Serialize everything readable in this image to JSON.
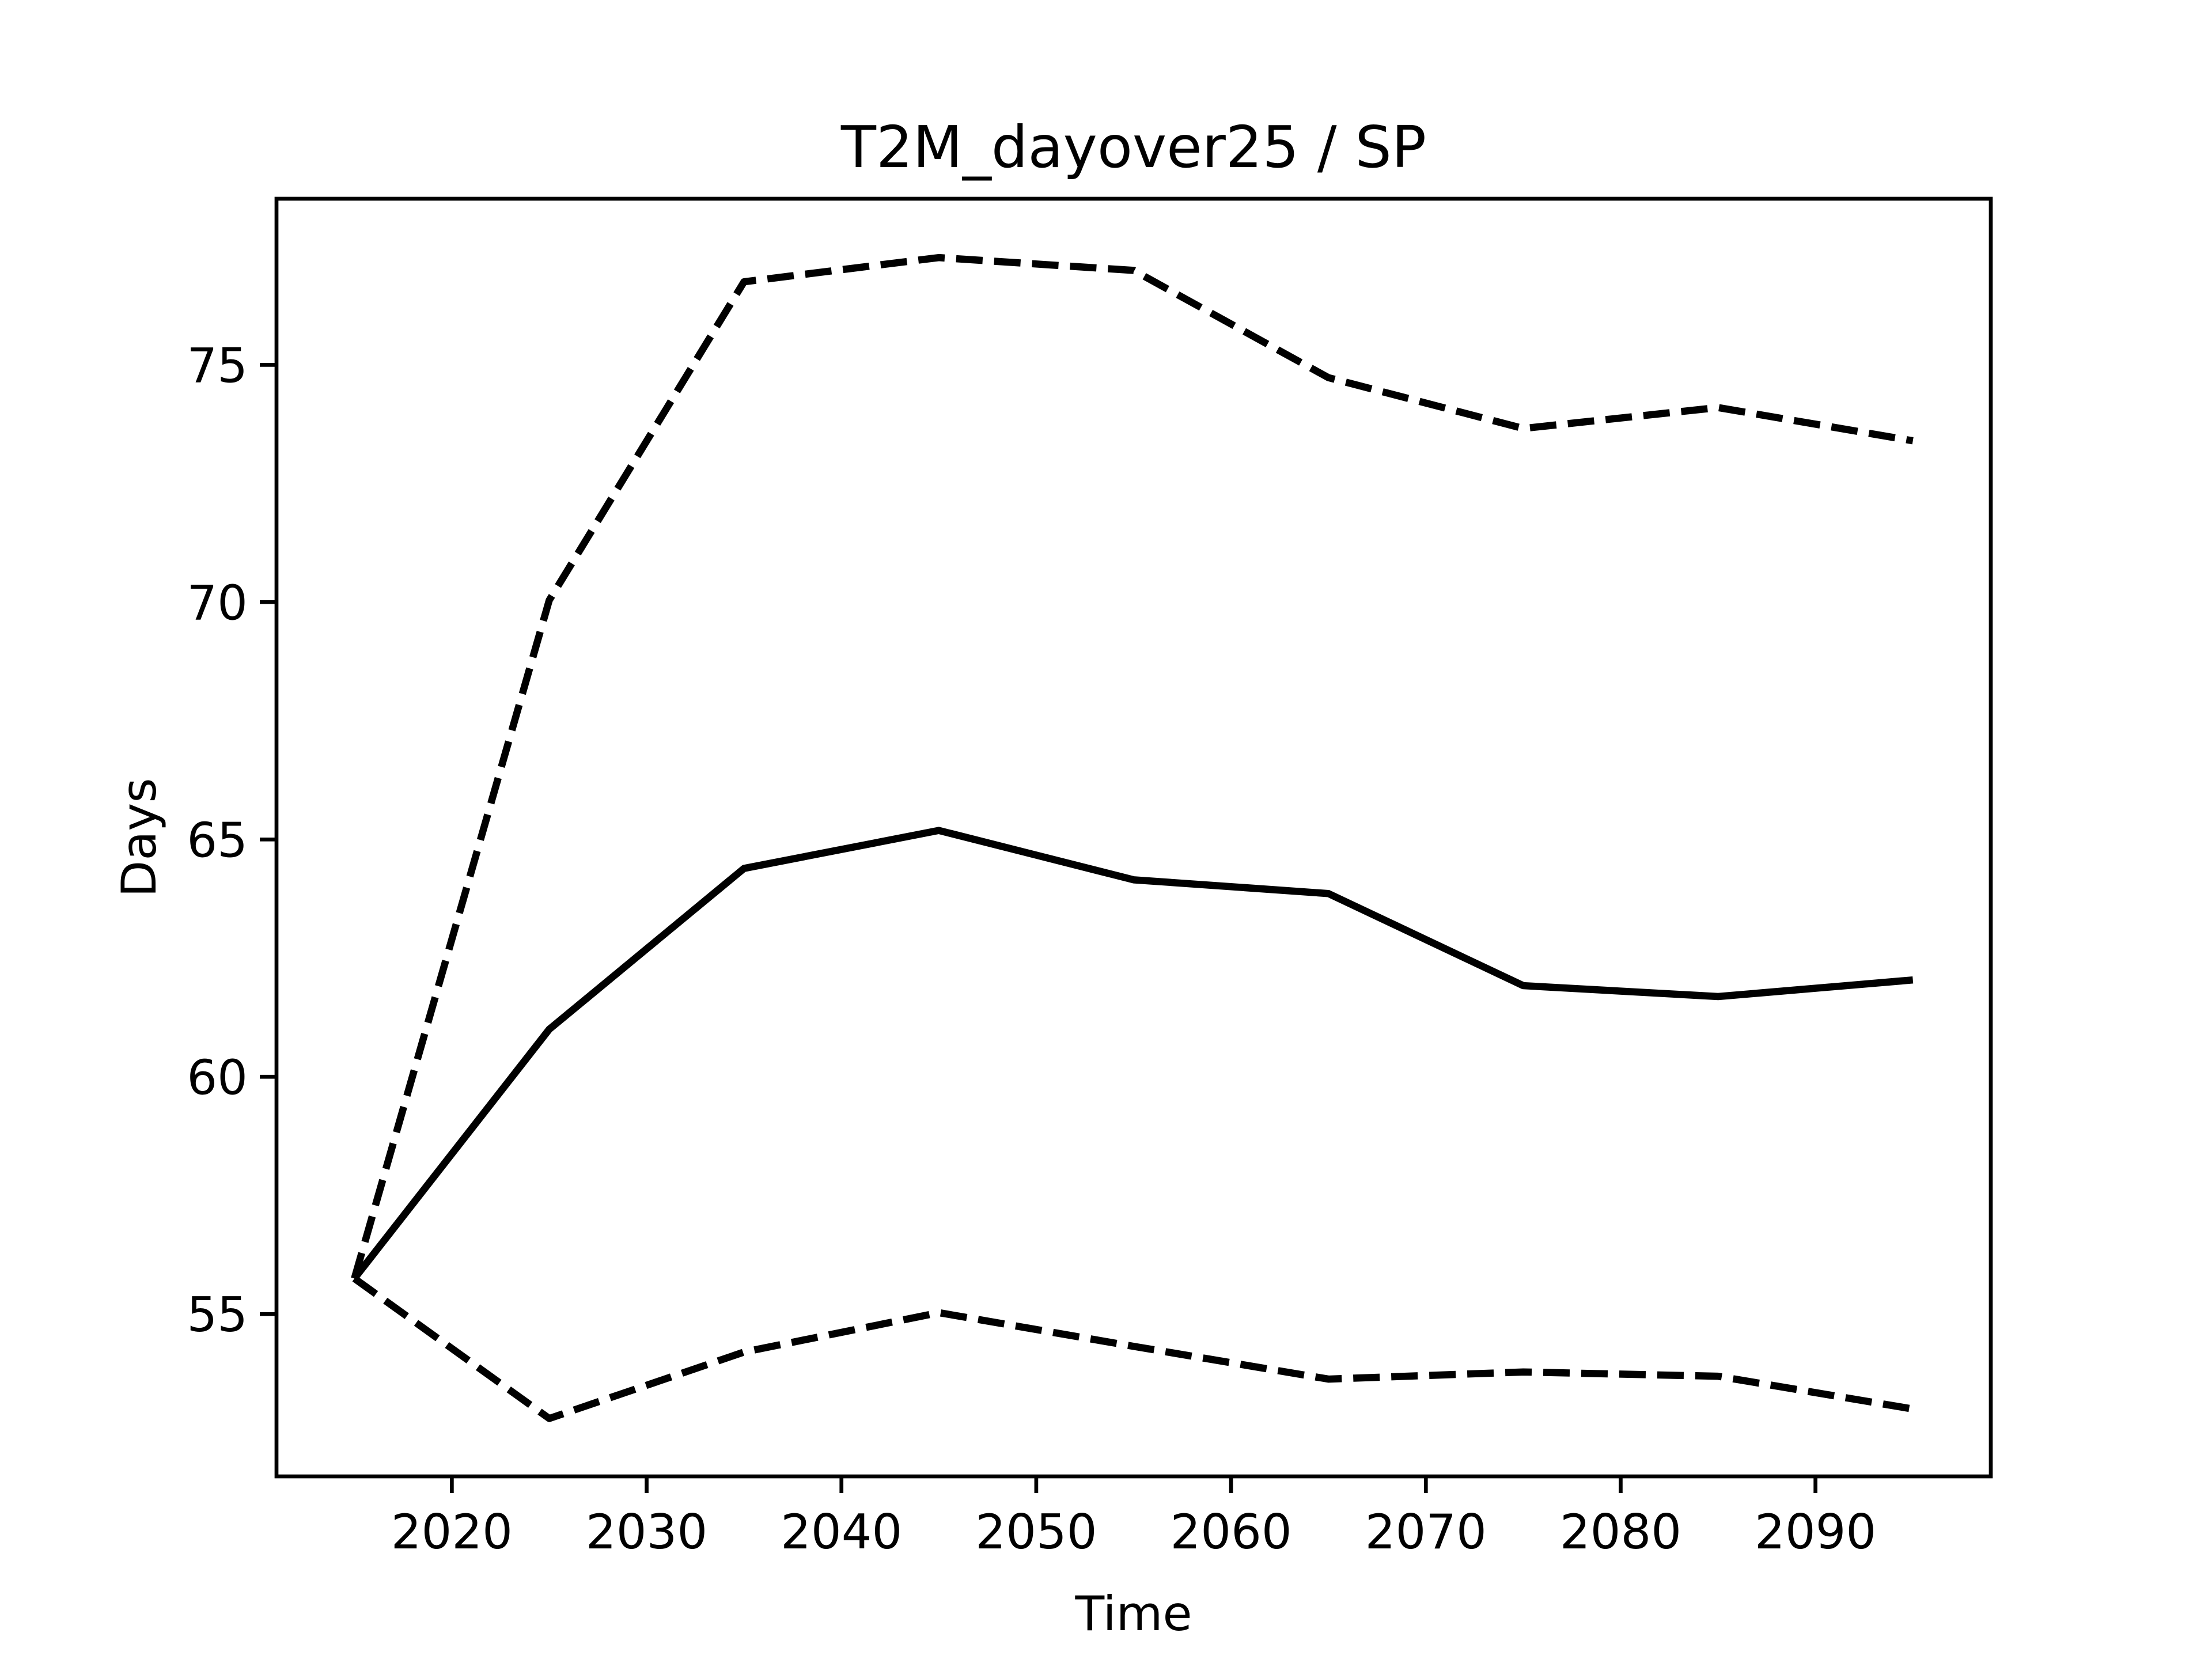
{
  "chart_data": {
    "type": "line",
    "title": "T2M_dayover25 / SP",
    "xlabel": "Time",
    "ylabel": "Days",
    "x": [
      2015,
      2025,
      2035,
      2045,
      2055,
      2065,
      2075,
      2085,
      2095
    ],
    "series": [
      {
        "color": "#000000",
        "linestyle": "solid",
        "values": [
          55.75,
          61.0,
          64.39,
          65.19,
          64.15,
          63.86,
          61.92,
          61.69,
          62.04
        ]
      },
      {
        "color": "#000000",
        "linestyle": "dashed",
        "values": [
          55.75,
          70.04,
          76.75,
          77.26,
          76.99,
          74.73,
          73.66,
          74.1,
          73.4
        ]
      },
      {
        "color": "#000000",
        "linestyle": "dashed",
        "values": [
          55.75,
          52.8,
          54.2,
          55.03,
          54.32,
          53.63,
          53.78,
          53.69,
          53.0
        ]
      }
    ],
    "xlim": [
      2011,
      2099
    ],
    "xticks": [
      2020,
      2030,
      2040,
      2050,
      2060,
      2070,
      2080,
      2090
    ],
    "ylim": [
      51.58,
      78.5
    ],
    "yticks": [
      55,
      60,
      65,
      70,
      75
    ],
    "grid": false
  }
}
